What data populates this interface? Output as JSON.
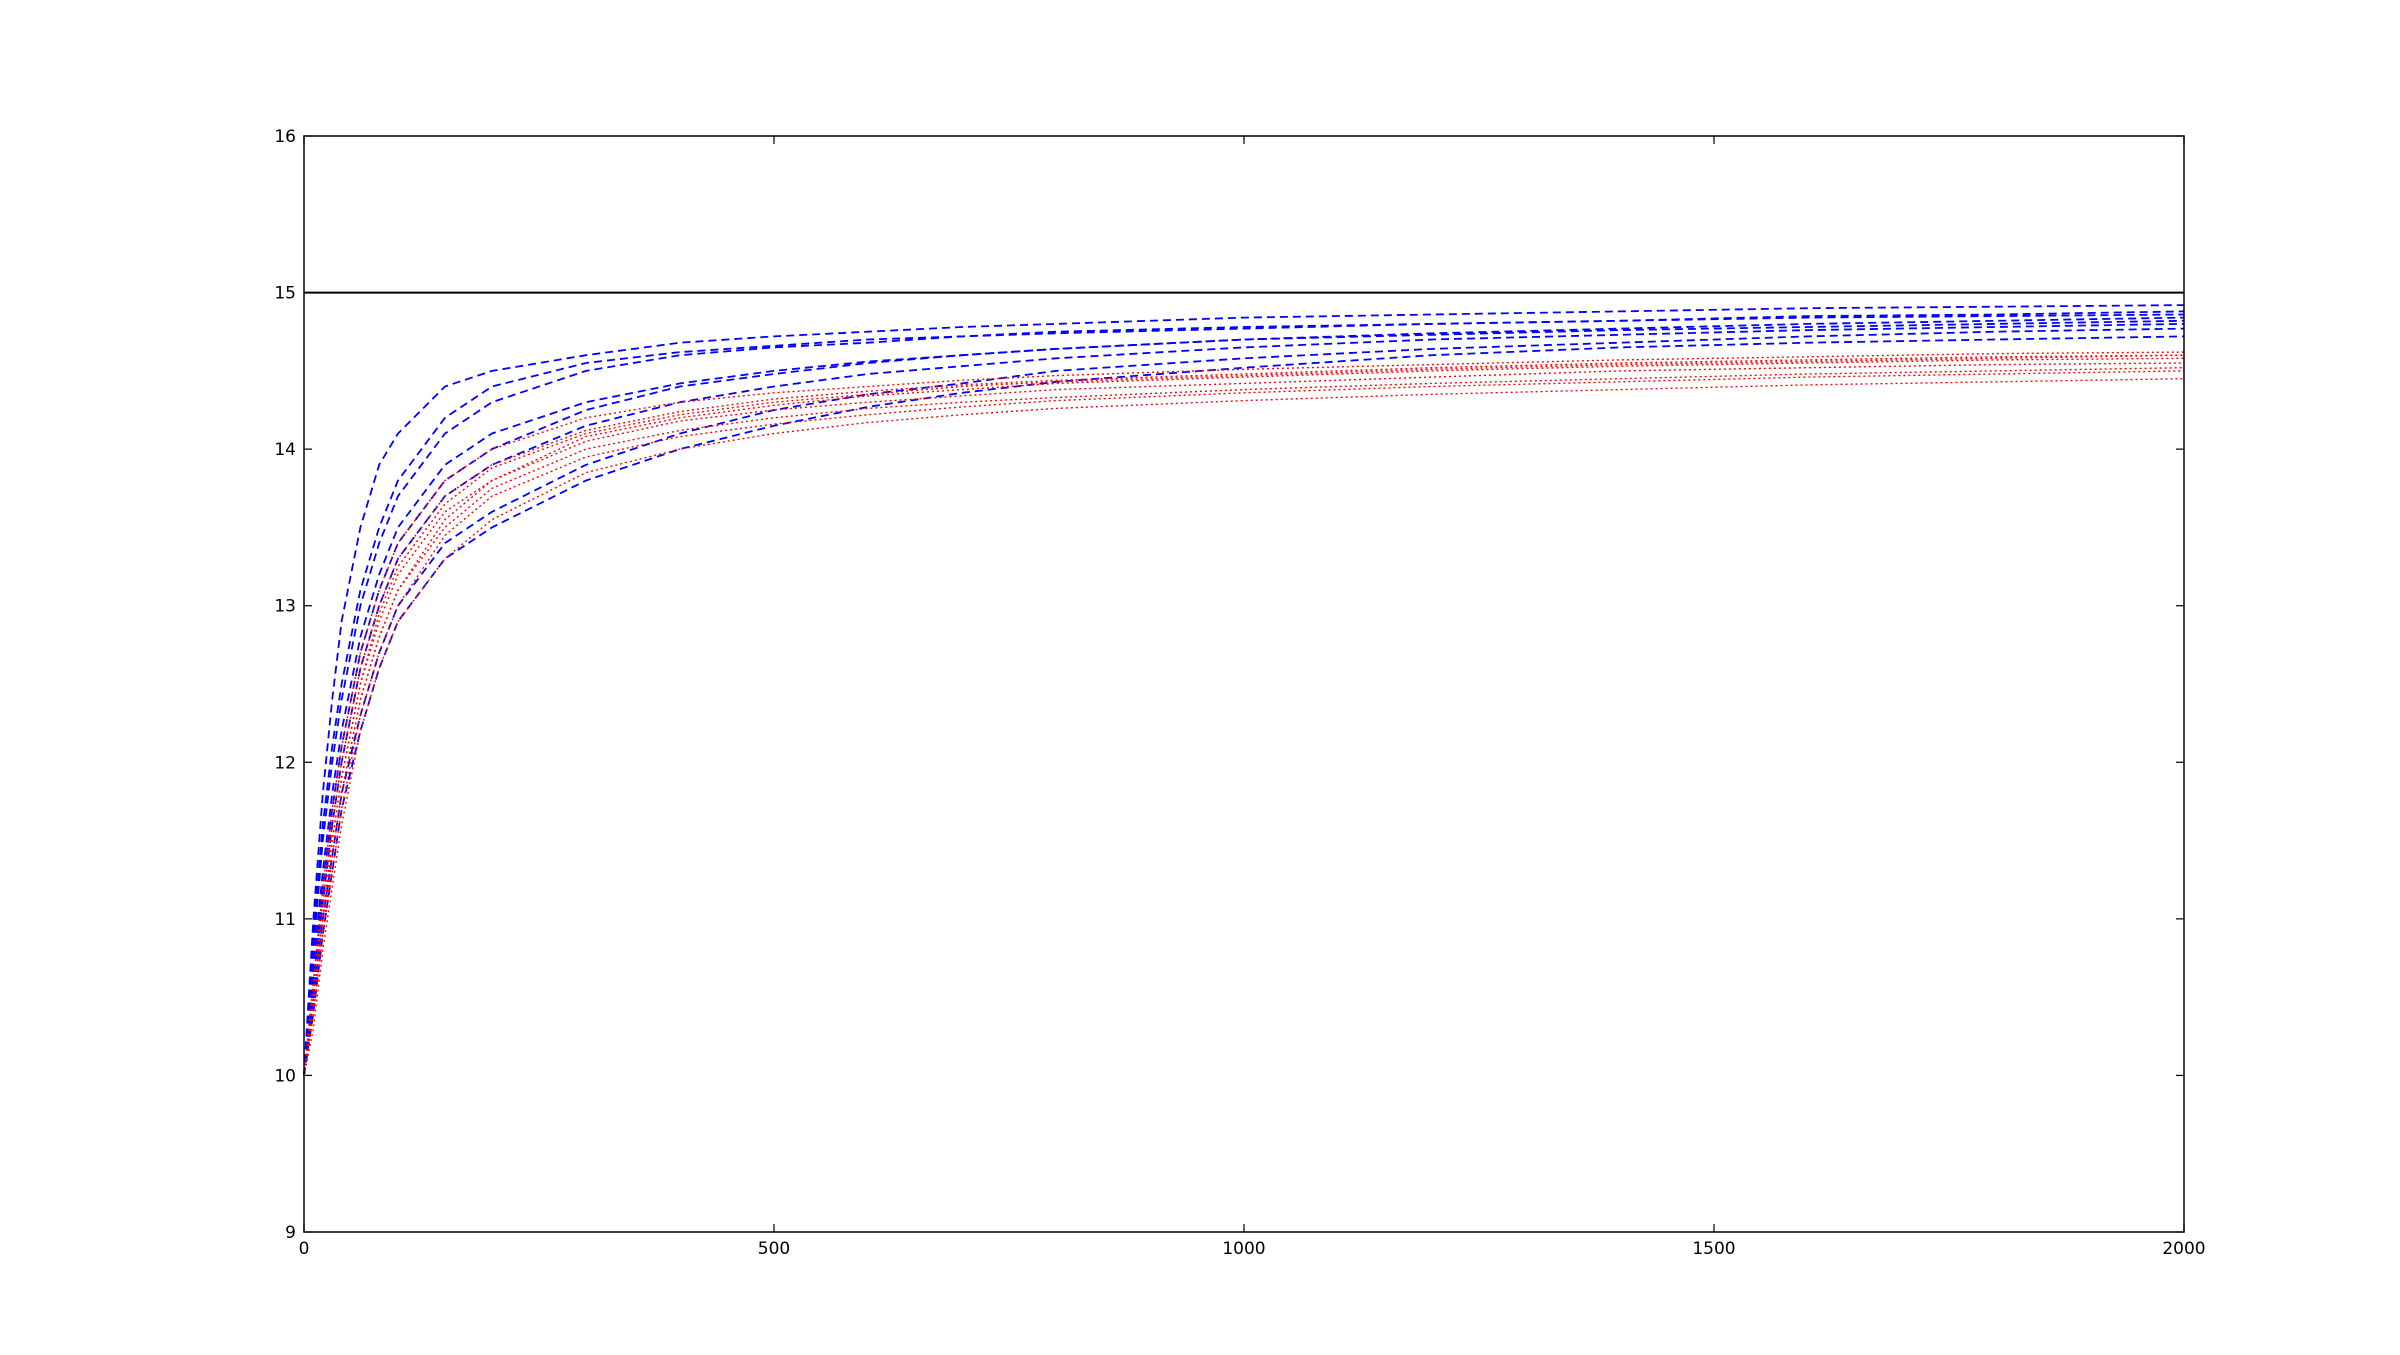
{
  "chart_data": {
    "type": "line",
    "title": "",
    "xlabel": "",
    "ylabel": "",
    "xlim": [
      0,
      2000
    ],
    "ylim": [
      9,
      16
    ],
    "xticks": [
      0,
      500,
      1000,
      1500,
      2000
    ],
    "yticks": [
      9,
      10,
      11,
      12,
      13,
      14,
      15,
      16
    ],
    "grid": false,
    "legend": "none",
    "reference_line": {
      "y": 15,
      "color": "#000000"
    },
    "series": [
      {
        "style": "dashed",
        "color": "#0000ff",
        "x": [
          0,
          10,
          20,
          30,
          40,
          60,
          80,
          100,
          150,
          200,
          300,
          400,
          500,
          600,
          700,
          800,
          1000,
          1200,
          1400,
          1600,
          1800,
          2000
        ],
        "y": [
          10.0,
          10.9,
          11.6,
          12.1,
          12.5,
          13.1,
          13.5,
          13.8,
          14.2,
          14.4,
          14.55,
          14.62,
          14.66,
          14.7,
          14.72,
          14.75,
          14.78,
          14.8,
          14.82,
          14.85,
          14.86,
          14.88
        ]
      },
      {
        "style": "dashed",
        "color": "#0000ff",
        "x": [
          0,
          10,
          20,
          30,
          40,
          60,
          80,
          100,
          150,
          200,
          300,
          400,
          500,
          600,
          700,
          800,
          1000,
          1200,
          1400,
          1600,
          1800,
          2000
        ],
        "y": [
          10.0,
          10.6,
          11.1,
          11.6,
          12.0,
          12.6,
          13.0,
          13.3,
          13.7,
          13.9,
          14.15,
          14.3,
          14.4,
          14.48,
          14.53,
          14.58,
          14.65,
          14.7,
          14.73,
          14.76,
          14.78,
          14.8
        ]
      },
      {
        "style": "dashed",
        "color": "#0000ff",
        "x": [
          0,
          10,
          20,
          30,
          40,
          60,
          80,
          100,
          150,
          200,
          300,
          400,
          500,
          600,
          700,
          800,
          1000,
          1200,
          1400,
          1600,
          1800,
          2000
        ],
        "y": [
          10.0,
          10.5,
          11.0,
          11.4,
          11.8,
          12.3,
          12.7,
          13.0,
          13.4,
          13.6,
          13.9,
          14.1,
          14.25,
          14.35,
          14.42,
          14.5,
          14.58,
          14.64,
          14.68,
          14.72,
          14.75,
          14.77
        ]
      },
      {
        "style": "dashed",
        "color": "#0000ff",
        "x": [
          0,
          10,
          20,
          30,
          40,
          60,
          80,
          100,
          150,
          200,
          300,
          400,
          500,
          600,
          700,
          800,
          1000,
          1200,
          1400,
          1600,
          1800,
          2000
        ],
        "y": [
          10.0,
          11.0,
          11.8,
          12.4,
          12.9,
          13.5,
          13.9,
          14.1,
          14.4,
          14.5,
          14.6,
          14.68,
          14.72,
          14.75,
          14.78,
          14.8,
          14.84,
          14.86,
          14.88,
          14.9,
          14.91,
          14.92
        ]
      },
      {
        "style": "dashed",
        "color": "#0000ff",
        "x": [
          0,
          10,
          20,
          30,
          40,
          60,
          80,
          100,
          150,
          200,
          300,
          400,
          500,
          600,
          700,
          800,
          1000,
          1200,
          1400,
          1600,
          1800,
          2000
        ],
        "y": [
          10.0,
          10.7,
          11.3,
          11.8,
          12.2,
          12.8,
          13.2,
          13.5,
          13.9,
          14.1,
          14.3,
          14.42,
          14.5,
          14.56,
          14.6,
          14.64,
          14.7,
          14.73,
          14.76,
          14.78,
          14.8,
          14.82
        ]
      },
      {
        "style": "dashed",
        "color": "#0000ff",
        "x": [
          0,
          10,
          20,
          30,
          40,
          60,
          80,
          100,
          150,
          200,
          300,
          400,
          500,
          600,
          700,
          800,
          1000,
          1200,
          1400,
          1600,
          1800,
          2000
        ],
        "y": [
          10.0,
          10.4,
          10.9,
          11.3,
          11.7,
          12.2,
          12.6,
          12.9,
          13.3,
          13.5,
          13.8,
          14.0,
          14.15,
          14.27,
          14.36,
          14.43,
          14.52,
          14.6,
          14.65,
          14.68,
          14.7,
          14.72
        ]
      },
      {
        "style": "dashed",
        "color": "#0000ff",
        "x": [
          0,
          10,
          20,
          30,
          40,
          60,
          80,
          100,
          150,
          200,
          300,
          400,
          500,
          600,
          700,
          800,
          1000,
          1200,
          1400,
          1600,
          1800,
          2000
        ],
        "y": [
          10.0,
          10.8,
          11.5,
          12.0,
          12.4,
          13.0,
          13.4,
          13.7,
          14.1,
          14.3,
          14.5,
          14.6,
          14.65,
          14.68,
          14.72,
          14.74,
          14.77,
          14.8,
          14.82,
          14.84,
          14.85,
          14.86
        ]
      },
      {
        "style": "dashed",
        "color": "#0000ff",
        "x": [
          0,
          10,
          20,
          30,
          40,
          60,
          80,
          100,
          150,
          200,
          300,
          400,
          500,
          600,
          700,
          800,
          1000,
          1200,
          1400,
          1600,
          1800,
          2000
        ],
        "y": [
          10.0,
          10.6,
          11.2,
          11.7,
          12.1,
          12.7,
          13.1,
          13.4,
          13.8,
          14.0,
          14.25,
          14.4,
          14.48,
          14.55,
          14.6,
          14.64,
          14.7,
          14.74,
          14.77,
          14.8,
          14.82,
          14.84
        ]
      },
      {
        "style": "dotted",
        "color": "#ff0000",
        "x": [
          0,
          10,
          20,
          30,
          40,
          60,
          80,
          100,
          150,
          200,
          300,
          400,
          500,
          600,
          700,
          800,
          1000,
          1200,
          1400,
          1600,
          1800,
          2000
        ],
        "y": [
          10.0,
          10.5,
          11.0,
          11.5,
          11.9,
          12.5,
          12.9,
          13.2,
          13.6,
          13.8,
          14.05,
          14.18,
          14.25,
          14.3,
          14.34,
          14.38,
          14.42,
          14.46,
          14.5,
          14.52,
          14.54,
          14.55
        ]
      },
      {
        "style": "dotted",
        "color": "#ff0000",
        "x": [
          0,
          10,
          20,
          30,
          40,
          60,
          80,
          100,
          150,
          200,
          300,
          400,
          500,
          600,
          700,
          800,
          1000,
          1200,
          1400,
          1600,
          1800,
          2000
        ],
        "y": [
          10.0,
          10.4,
          10.9,
          11.4,
          11.8,
          12.4,
          12.8,
          13.1,
          13.5,
          13.75,
          14.0,
          14.12,
          14.2,
          14.26,
          14.3,
          14.33,
          14.38,
          14.42,
          14.45,
          14.48,
          14.5,
          14.52
        ]
      },
      {
        "style": "dotted",
        "color": "#ff0000",
        "x": [
          0,
          10,
          20,
          30,
          40,
          60,
          80,
          100,
          150,
          200,
          300,
          400,
          500,
          600,
          700,
          800,
          1000,
          1200,
          1400,
          1600,
          1800,
          2000
        ],
        "y": [
          10.0,
          10.6,
          11.1,
          11.6,
          12.0,
          12.6,
          13.0,
          13.3,
          13.7,
          13.9,
          14.12,
          14.24,
          14.32,
          14.37,
          14.41,
          14.44,
          14.48,
          14.52,
          14.55,
          14.57,
          14.59,
          14.6
        ]
      },
      {
        "style": "dotted",
        "color": "#ff0000",
        "x": [
          0,
          10,
          20,
          30,
          40,
          60,
          80,
          100,
          150,
          200,
          300,
          400,
          500,
          600,
          700,
          800,
          1000,
          1200,
          1400,
          1600,
          1800,
          2000
        ],
        "y": [
          10.0,
          10.3,
          10.8,
          11.2,
          11.6,
          12.2,
          12.6,
          12.9,
          13.3,
          13.55,
          13.85,
          14.0,
          14.1,
          14.17,
          14.22,
          14.26,
          14.31,
          14.35,
          14.38,
          14.41,
          14.43,
          14.45
        ]
      },
      {
        "style": "dotted",
        "color": "#ff0000",
        "x": [
          0,
          10,
          20,
          30,
          40,
          60,
          80,
          100,
          150,
          200,
          300,
          400,
          500,
          600,
          700,
          800,
          1000,
          1200,
          1400,
          1600,
          1800,
          2000
        ],
        "y": [
          10.0,
          10.5,
          11.0,
          11.4,
          11.8,
          12.4,
          12.8,
          13.1,
          13.55,
          13.8,
          14.08,
          14.2,
          14.28,
          14.34,
          14.38,
          14.42,
          14.46,
          14.5,
          14.53,
          14.55,
          14.57,
          14.58
        ]
      },
      {
        "style": "dotted",
        "color": "#ff0000",
        "x": [
          0,
          10,
          20,
          30,
          40,
          60,
          80,
          100,
          150,
          200,
          300,
          400,
          500,
          600,
          700,
          800,
          1000,
          1200,
          1400,
          1600,
          1800,
          2000
        ],
        "y": [
          10.0,
          10.6,
          11.2,
          11.7,
          12.1,
          12.7,
          13.1,
          13.4,
          13.8,
          14.0,
          14.2,
          14.3,
          14.36,
          14.4,
          14.44,
          14.47,
          14.51,
          14.54,
          14.57,
          14.59,
          14.61,
          14.62
        ]
      },
      {
        "style": "dotted",
        "color": "#ff0000",
        "x": [
          0,
          10,
          20,
          30,
          40,
          60,
          80,
          100,
          150,
          200,
          300,
          400,
          500,
          600,
          700,
          800,
          1000,
          1200,
          1400,
          1600,
          1800,
          2000
        ],
        "y": [
          10.0,
          10.4,
          10.9,
          11.3,
          11.7,
          12.3,
          12.7,
          13.0,
          13.45,
          13.7,
          13.95,
          14.08,
          14.16,
          14.22,
          14.27,
          14.31,
          14.36,
          14.4,
          14.43,
          14.46,
          14.48,
          14.5
        ]
      },
      {
        "style": "dotted",
        "color": "#ff0000",
        "x": [
          0,
          10,
          20,
          30,
          40,
          60,
          80,
          100,
          150,
          200,
          300,
          400,
          500,
          600,
          700,
          800,
          1000,
          1200,
          1400,
          1600,
          1800,
          2000
        ],
        "y": [
          10.0,
          10.5,
          11.0,
          11.5,
          11.9,
          12.5,
          12.95,
          13.25,
          13.65,
          13.88,
          14.1,
          14.22,
          14.3,
          14.35,
          14.4,
          14.43,
          14.47,
          14.51,
          14.54,
          14.56,
          14.58,
          14.6
        ]
      }
    ]
  }
}
